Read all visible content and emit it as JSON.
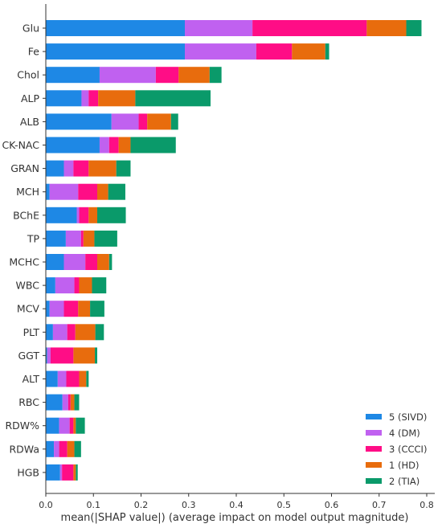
{
  "chart_data": {
    "type": "bar",
    "orientation": "horizontal",
    "stacked": true,
    "xlabel": "mean(|SHAP value|) (average impact on model output magnitude)",
    "ylabel": "",
    "xlim": [
      0,
      0.82
    ],
    "xticks": [
      "0.0",
      "0.1",
      "0.2",
      "0.3",
      "0.4",
      "0.5",
      "0.6",
      "0.7",
      "0.8"
    ],
    "grid": false,
    "legend_position": "bottom-right",
    "categories": [
      "Glu",
      "Fe",
      "Chol",
      "ALP",
      "ALB",
      "CK-NAC",
      "GRAN",
      "MCH",
      "BChE",
      "TP",
      "MCHC",
      "WBC",
      "MCV",
      "PLT",
      "GGT",
      "ALT",
      "RBC",
      "RDW%",
      "RDWa",
      "HGB"
    ],
    "series": [
      {
        "name": "5 (SIVD)",
        "color": "#1e88e5",
        "values": [
          0.292,
          0.292,
          0.113,
          0.075,
          0.138,
          0.113,
          0.038,
          0.008,
          0.065,
          0.042,
          0.038,
          0.02,
          0.008,
          0.015,
          0.003,
          0.025,
          0.035,
          0.028,
          0.017,
          0.03
        ]
      },
      {
        "name": "4 (DM)",
        "color": "#c061f0",
        "values": [
          0.142,
          0.15,
          0.118,
          0.015,
          0.057,
          0.02,
          0.02,
          0.06,
          0.005,
          0.032,
          0.045,
          0.04,
          0.03,
          0.03,
          0.007,
          0.018,
          0.012,
          0.022,
          0.011,
          0.004
        ]
      },
      {
        "name": "3 (CCCI)",
        "color": "#ff0d86",
        "values": [
          0.24,
          0.075,
          0.048,
          0.02,
          0.018,
          0.02,
          0.032,
          0.04,
          0.02,
          0.005,
          0.025,
          0.01,
          0.03,
          0.017,
          0.048,
          0.027,
          0.005,
          0.008,
          0.017,
          0.024
        ]
      },
      {
        "name": "1 (HD)",
        "color": "#e86c0d",
        "values": [
          0.083,
          0.07,
          0.065,
          0.078,
          0.05,
          0.025,
          0.058,
          0.023,
          0.018,
          0.023,
          0.025,
          0.027,
          0.025,
          0.042,
          0.045,
          0.015,
          0.008,
          0.005,
          0.015,
          0.005
        ]
      },
      {
        "name": "2 (TIA)",
        "color": "#0a9a6a",
        "values": [
          0.032,
          0.008,
          0.025,
          0.158,
          0.015,
          0.095,
          0.03,
          0.036,
          0.06,
          0.048,
          0.006,
          0.03,
          0.03,
          0.018,
          0.005,
          0.005,
          0.01,
          0.019,
          0.014,
          0.004
        ]
      }
    ],
    "legend_order": [
      0,
      1,
      2,
      3,
      4
    ]
  }
}
